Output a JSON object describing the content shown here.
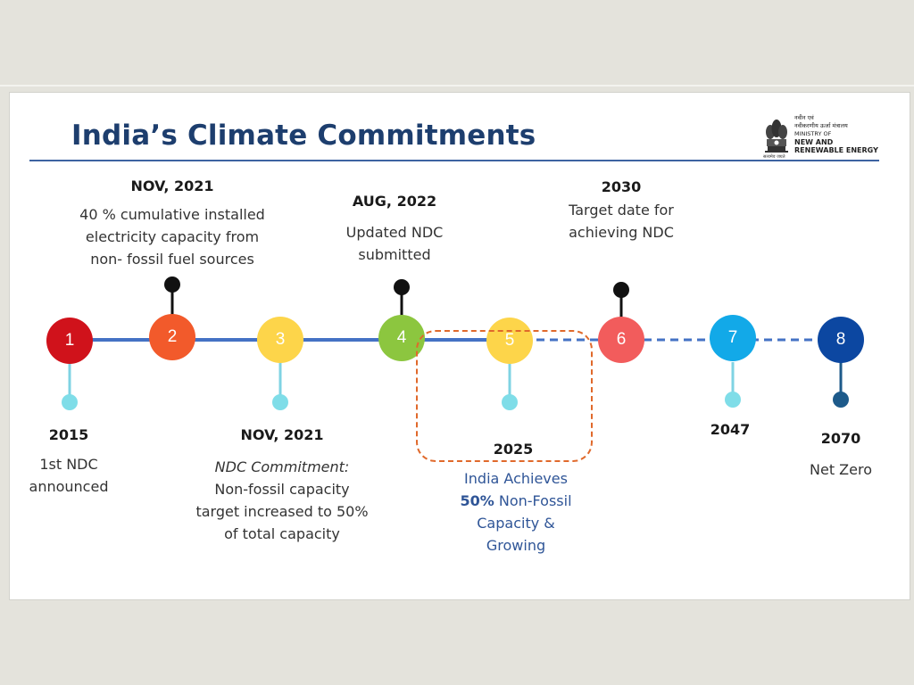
{
  "slide": {
    "title": "India’s Climate Commitments",
    "logo": {
      "hindi_line1": "नवीन एवं",
      "hindi_line2": "नवीकरणीय ऊर्जा मंत्रालय",
      "line1": "MINISTRY OF",
      "line2": "NEW AND",
      "line3": "RENEWABLE ENERGY",
      "motto": "सत्यमेव जयते"
    }
  },
  "colors": {
    "title": "#1d3e6e",
    "line": "#4472c4",
    "highlight_border": "#e0692b",
    "highlight_text": "#2f5597"
  },
  "milestones": [
    {
      "number": "1",
      "color": "#d0121b",
      "date": "2015",
      "lines": [
        "1st NDC",
        "announced"
      ]
    },
    {
      "number": "2",
      "color": "#f25a2b",
      "date": "NOV, 2021",
      "lines": [
        "40 % cumulative installed",
        "electricity capacity from",
        "non- fossil fuel sources"
      ]
    },
    {
      "number": "3",
      "color": "#fdd54a",
      "date": "NOV, 2021",
      "lines_italic": "NDC Commitment:",
      "lines": [
        "Non-fossil capacity",
        "target increased to 50%",
        "of total capacity"
      ]
    },
    {
      "number": "4",
      "color": "#8cc63f",
      "date": "AUG, 2022",
      "lines": [
        "Updated NDC",
        "submitted"
      ]
    },
    {
      "number": "5",
      "color": "#fdd54a",
      "date": "2025",
      "highlight": {
        "line1": "India Achieves",
        "bold": "50%",
        "line2_rest": " Non-Fossil",
        "line3": "Capacity &",
        "line4": "Growing"
      }
    },
    {
      "number": "6",
      "color": "#f25c5c",
      "date": "2030",
      "lines": [
        "Target date for",
        "achieving NDC"
      ]
    },
    {
      "number": "7",
      "color": "#12a9e8",
      "date": "2047"
    },
    {
      "number": "8",
      "color": "#0c47a1",
      "date": "2070",
      "lines": [
        "Net Zero"
      ]
    }
  ]
}
